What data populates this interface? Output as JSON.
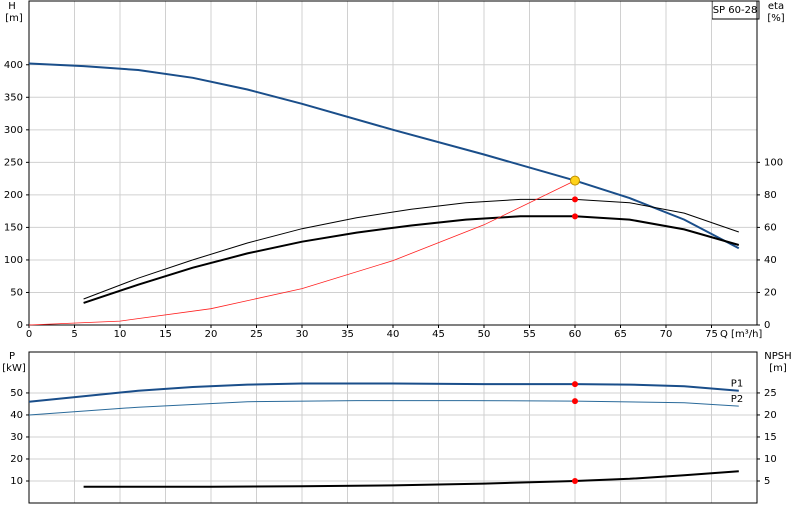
{
  "chart_data": [
    {
      "type": "line",
      "title": "SP 60-28",
      "y_label": "H",
      "y_unit": "[m]",
      "y2_label": "eta",
      "y2_unit": "[%]",
      "x_label": "Q [m³/h]",
      "xlim": [
        0,
        80
      ],
      "xticks": [
        0,
        5,
        10,
        15,
        20,
        25,
        30,
        35,
        40,
        45,
        50,
        55,
        60,
        65,
        70,
        75
      ],
      "ylim": [
        0,
        498
      ],
      "yticks": [
        0,
        50,
        100,
        150,
        200,
        250,
        300,
        350,
        400
      ],
      "y2lim": [
        0,
        199.2
      ],
      "y2ticks": [
        0,
        20,
        40,
        60,
        80,
        100
      ],
      "grid": true,
      "series": [
        {
          "color": "#1a4e8a",
          "width": 2,
          "x": [
            0,
            6,
            12,
            18,
            24,
            30,
            40,
            50,
            60,
            66,
            72,
            78
          ],
          "values": [
            402,
            398,
            392,
            380,
            362,
            340,
            300,
            262,
            222,
            195,
            162,
            118
          ]
        },
        {
          "color": "#000000",
          "width": 1,
          "axis": "y2",
          "x": [
            6,
            12,
            18,
            24,
            30,
            36,
            42,
            48,
            54,
            60,
            66,
            72,
            78
          ],
          "values": [
            16,
            28.8,
            40,
            50.4,
            59.2,
            66,
            71.2,
            75.2,
            77.2,
            77.2,
            75.2,
            68.8,
            57.2
          ]
        },
        {
          "color": "#000000",
          "width": 2,
          "axis": "y2",
          "x": [
            6,
            12,
            18,
            24,
            30,
            36,
            42,
            48,
            54,
            60,
            66,
            72,
            78
          ],
          "values": [
            13.6,
            24.8,
            35.2,
            44,
            51.2,
            56.8,
            61.2,
            64.8,
            66.8,
            66.8,
            64.8,
            58.8,
            49.2
          ]
        },
        {
          "color": "#ff2020",
          "width": 0.8,
          "x": [
            0,
            10,
            20,
            30,
            40,
            50,
            60
          ],
          "values": [
            0,
            6,
            25,
            56,
            99,
            154,
            222
          ]
        }
      ],
      "markers": [
        {
          "x": 60,
          "y": 222,
          "color": "#ffd21a"
        },
        {
          "x": 60,
          "y": 77.2,
          "axis": "y2",
          "color": "#ff0000"
        },
        {
          "x": 60,
          "y": 66.8,
          "axis": "y2",
          "color": "#ff0000"
        }
      ]
    },
    {
      "type": "line",
      "y_label": "P",
      "y_unit": "[kW]",
      "y2_label": "NPSH",
      "y2_unit": "[m]",
      "xlim": [
        0,
        80
      ],
      "ylim": [
        0,
        68.6
      ],
      "yticks": [
        10,
        20,
        30,
        40,
        50
      ],
      "y2lim": [
        0,
        34.3
      ],
      "y2ticks": [
        5,
        10,
        15,
        20,
        25
      ],
      "grid": true,
      "series": [
        {
          "name": "P1",
          "color": "#1a4e8a",
          "width": 2,
          "x": [
            0,
            6,
            12,
            18,
            24,
            30,
            40,
            50,
            60,
            66,
            72,
            78
          ],
          "values": [
            46,
            48.5,
            51,
            52.7,
            53.8,
            54.3,
            54.3,
            54,
            54,
            53.8,
            53,
            51
          ]
        },
        {
          "name": "P2",
          "color": "#2a6a9a",
          "width": 1,
          "x": [
            0,
            12,
            24,
            36,
            48,
            60,
            72,
            78
          ],
          "values": [
            40,
            43.5,
            46,
            46.5,
            46.5,
            46.3,
            45.5,
            44
          ]
        },
        {
          "color": "#000000",
          "width": 2,
          "axis": "y2",
          "x": [
            6,
            20,
            30,
            40,
            50,
            60,
            66,
            72,
            78
          ],
          "values": [
            3.7,
            3.7,
            3.8,
            4,
            4.4,
            5,
            5.5,
            6.3,
            7.2
          ]
        }
      ],
      "markers": [
        {
          "x": 60,
          "y": 54,
          "color": "#ff0000"
        },
        {
          "x": 60,
          "y": 46.3,
          "color": "#ff0000"
        },
        {
          "x": 60,
          "y": 5,
          "axis": "y2",
          "color": "#ff0000"
        }
      ]
    }
  ]
}
